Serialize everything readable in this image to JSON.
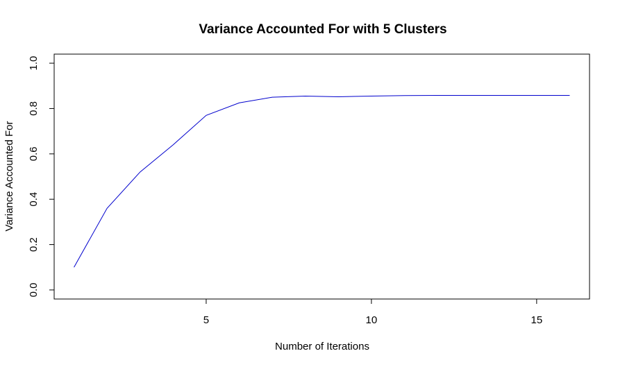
{
  "chart_data": {
    "type": "line",
    "title": "Variance Accounted For with 5 Clusters",
    "xlabel": "Number of Iterations",
    "ylabel": "Variance Accounted For",
    "x": [
      1,
      2,
      3,
      4,
      5,
      6,
      7,
      8,
      9,
      10,
      11,
      12,
      13,
      14,
      15,
      16
    ],
    "series": [
      {
        "values": [
          0.1,
          0.36,
          0.52,
          0.64,
          0.77,
          0.825,
          0.85,
          0.855,
          0.852,
          0.855,
          0.857,
          0.858,
          0.858,
          0.858,
          0.858,
          0.858
        ],
        "color": "#0000cd"
      }
    ],
    "x_ticks": [
      "5",
      "10",
      "15"
    ],
    "y_ticks": [
      "0.0",
      "0.2",
      "0.4",
      "0.6",
      "0.8",
      "1.0"
    ],
    "xlim": [
      0.4,
      16.6
    ],
    "ylim": [
      -0.04,
      1.04
    ],
    "grid": false,
    "legend": "none"
  }
}
